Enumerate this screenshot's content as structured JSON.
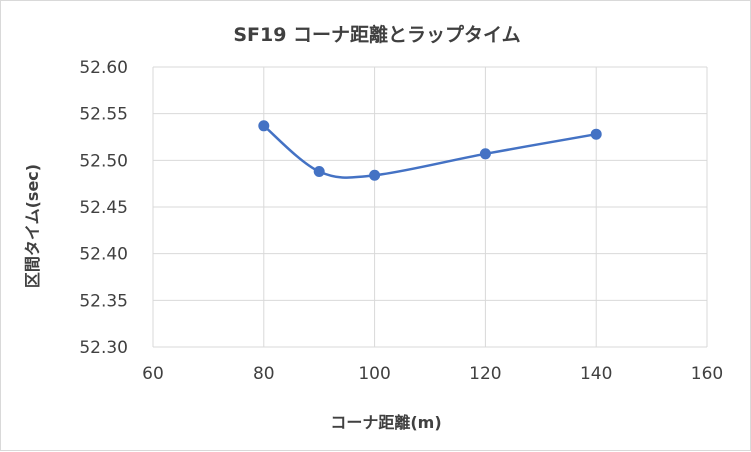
{
  "chart_data": {
    "type": "scatter",
    "title": "SF19 コーナ距離とラップタイム",
    "xlabel": "コーナ距離(m)",
    "ylabel": "区間タイム(sec)",
    "xlim": [
      60,
      160
    ],
    "ylim": [
      52.3,
      52.6
    ],
    "x_ticks": [
      "60",
      "80",
      "100",
      "120",
      "140",
      "160"
    ],
    "y_ticks": [
      "52.30",
      "52.35",
      "52.40",
      "52.45",
      "52.50",
      "52.55",
      "52.60"
    ],
    "grid": true,
    "smooth_line": true,
    "series": [
      {
        "color": "#4472c4",
        "points": [
          {
            "x": 80,
            "y": 52.537
          },
          {
            "x": 90,
            "y": 52.488
          },
          {
            "x": 100,
            "y": 52.484
          },
          {
            "x": 120,
            "y": 52.507
          },
          {
            "x": 140,
            "y": 52.528
          }
        ]
      }
    ],
    "colors": {
      "grid": "#d9d9d9",
      "text": "#404040",
      "series": "#4472c4"
    }
  }
}
